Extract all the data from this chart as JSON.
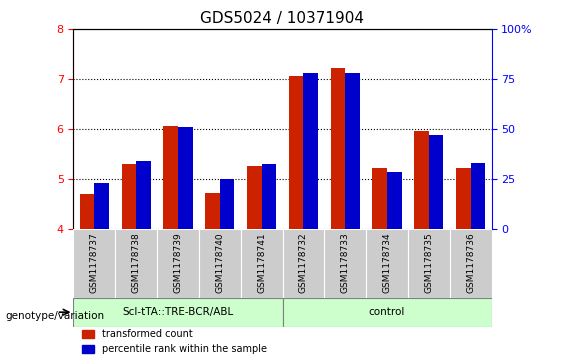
{
  "title": "GDS5024 / 10371904",
  "samples": [
    "GSM1178737",
    "GSM1178738",
    "GSM1178739",
    "GSM1178740",
    "GSM1178741",
    "GSM1178732",
    "GSM1178733",
    "GSM1178734",
    "GSM1178735",
    "GSM1178736"
  ],
  "red_values": [
    4.7,
    5.3,
    6.05,
    4.72,
    5.25,
    7.05,
    7.22,
    5.22,
    5.95,
    5.22
  ],
  "blue_values": [
    4.92,
    5.35,
    6.03,
    4.99,
    5.3,
    7.12,
    7.12,
    5.14,
    5.88,
    5.32
  ],
  "ylim": [
    4.0,
    8.0
  ],
  "yticks_left": [
    4,
    5,
    6,
    7,
    8
  ],
  "yticks_right": [
    0,
    25,
    50,
    75,
    100
  ],
  "group1_label": "ScI-tTA::TRE-BCR/ABL",
  "group2_label": "control",
  "group1_indices": [
    0,
    1,
    2,
    3,
    4
  ],
  "group2_indices": [
    5,
    6,
    7,
    8,
    9
  ],
  "group_bg_color": "#ccffcc",
  "sample_cell_color": "#cccccc",
  "legend_red_label": "transformed count",
  "legend_blue_label": "percentile rank within the sample",
  "genotype_label": "genotype/variation",
  "red_color": "#cc2200",
  "blue_color": "#0000cc",
  "title_fontsize": 11,
  "bar_width": 0.35,
  "dotted_line_color": "#000000"
}
